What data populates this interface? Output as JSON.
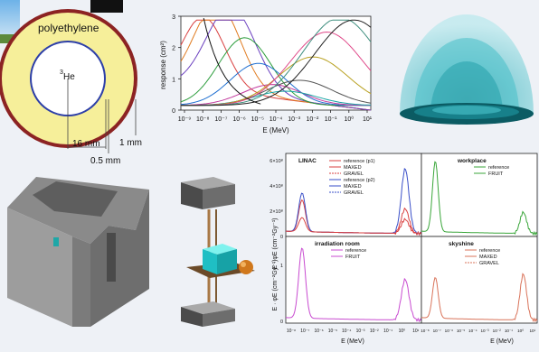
{
  "detector": {
    "moderator_label": "polyethylene",
    "core_label_sup": "3",
    "core_label": "He",
    "dim_radius": "16 mm",
    "dim_shell": "0.5 mm",
    "dim_wall": "1 mm",
    "colors": {
      "moderator": "#f6ef9a",
      "rim": "#8c2323",
      "core": "#ffffff",
      "shell": "#2d3fa8"
    }
  },
  "response_chart": {
    "ylabel": "response (cm²)",
    "xlabel": "E (MeV)",
    "y_ticks": [
      "0",
      "1",
      "2",
      "3"
    ],
    "x_ticks": [
      "10⁻⁹",
      "10⁻⁸",
      "10⁻⁷",
      "10⁻⁶",
      "10⁻⁵",
      "10⁻⁴",
      "10⁻³",
      "10⁻²",
      "10⁻¹",
      "10⁰",
      "10¹"
    ]
  },
  "spectra": {
    "y_axis_label": "E · φE (cm⁻²Gy⁻¹)",
    "x_axis_label": "E (MeV)",
    "y_ticks_top": [
      "0",
      "2×10⁸",
      "4×10⁸",
      "6×10⁸"
    ],
    "y_ticks_bottom": [
      "0",
      "1"
    ],
    "x_ticks": [
      "10⁻⁸",
      "10⁻⁷",
      "10⁻⁶",
      "10⁻⁵",
      "10⁻⁴",
      "10⁻³",
      "10⁻²",
      "10⁻¹",
      "10⁰",
      "10¹"
    ],
    "panels": {
      "linac": {
        "title": "LINAC",
        "legend": [
          "reference (p1)",
          "MAXED",
          "GRAVEL",
          "reference (p2)",
          "MAXED",
          "GRAVEL"
        ]
      },
      "workplace": {
        "title": "workplace",
        "legend": [
          "reference",
          "FRUIT"
        ]
      },
      "irradiation": {
        "title": "irradiation room",
        "legend": [
          "reference",
          "FRUIT"
        ]
      },
      "skyshine": {
        "title": "skyshine",
        "legend": [
          "reference",
          "MAXED",
          "GRAVEL"
        ]
      }
    }
  },
  "colors": {
    "red": "#d94040",
    "blue": "#3a4fc8",
    "green": "#3aa63a",
    "magenta": "#c84bd0",
    "salmon": "#d9735a",
    "hemisphere": "#5cc9d1"
  }
}
